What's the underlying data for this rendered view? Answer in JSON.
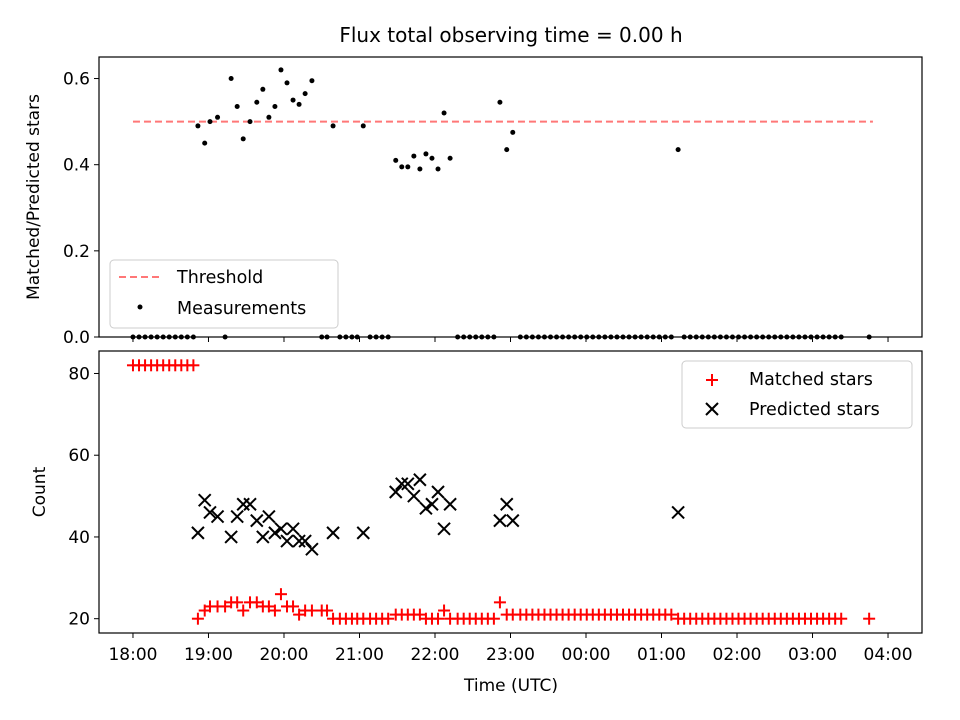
{
  "chart_data": [
    {
      "type": "scatter",
      "title": "Flux total observing time = 0.00 h",
      "xlabel": "",
      "ylabel": "Matched/Predicted stars",
      "x_unit": "hours since 18:00 UTC",
      "xlim": [
        -0.45,
        10.45
      ],
      "ylim": [
        0.0,
        0.65
      ],
      "yticks": [
        0.0,
        0.2,
        0.4,
        0.6
      ],
      "ytick_labels": [
        "0.0",
        "0.2",
        "0.4",
        "0.6"
      ],
      "legend_position": "lower-left",
      "threshold": {
        "name": "Threshold",
        "value": 0.5,
        "x_range": [
          0.0,
          9.8
        ],
        "color": "#ff7777",
        "style": "dashed"
      },
      "series": [
        {
          "name": "Measurements",
          "marker": "dot",
          "color": "#000000",
          "points": [
            [
              0.0,
              0.0
            ],
            [
              0.08,
              0.0
            ],
            [
              0.16,
              0.0
            ],
            [
              0.24,
              0.0
            ],
            [
              0.32,
              0.0
            ],
            [
              0.4,
              0.0
            ],
            [
              0.48,
              0.0
            ],
            [
              0.56,
              0.0
            ],
            [
              0.64,
              0.0
            ],
            [
              0.72,
              0.0
            ],
            [
              0.8,
              0.0
            ],
            [
              0.86,
              0.49
            ],
            [
              0.95,
              0.45
            ],
            [
              1.02,
              0.5
            ],
            [
              1.12,
              0.51
            ],
            [
              1.22,
              0.0
            ],
            [
              1.3,
              0.6
            ],
            [
              1.38,
              0.535
            ],
            [
              1.46,
              0.46
            ],
            [
              1.55,
              0.5
            ],
            [
              1.64,
              0.545
            ],
            [
              1.72,
              0.575
            ],
            [
              1.8,
              0.51
            ],
            [
              1.88,
              0.535
            ],
            [
              1.96,
              0.62
            ],
            [
              2.04,
              0.59
            ],
            [
              2.12,
              0.55
            ],
            [
              2.2,
              0.54
            ],
            [
              2.28,
              0.565
            ],
            [
              2.37,
              0.595
            ],
            [
              2.5,
              0.0
            ],
            [
              2.57,
              0.0
            ],
            [
              2.65,
              0.49
            ],
            [
              2.74,
              0.0
            ],
            [
              2.82,
              0.0
            ],
            [
              2.9,
              0.0
            ],
            [
              2.97,
              0.0
            ],
            [
              3.05,
              0.49
            ],
            [
              3.14,
              0.0
            ],
            [
              3.22,
              0.0
            ],
            [
              3.3,
              0.0
            ],
            [
              3.38,
              0.0
            ],
            [
              3.48,
              0.41
            ],
            [
              3.56,
              0.395
            ],
            [
              3.64,
              0.395
            ],
            [
              3.72,
              0.42
            ],
            [
              3.8,
              0.39
            ],
            [
              3.88,
              0.425
            ],
            [
              3.96,
              0.415
            ],
            [
              4.04,
              0.39
            ],
            [
              4.12,
              0.52
            ],
            [
              4.2,
              0.415
            ],
            [
              4.3,
              0.0
            ],
            [
              4.38,
              0.0
            ],
            [
              4.46,
              0.0
            ],
            [
              4.54,
              0.0
            ],
            [
              4.62,
              0.0
            ],
            [
              4.7,
              0.0
            ],
            [
              4.78,
              0.0
            ],
            [
              4.86,
              0.545
            ],
            [
              4.95,
              0.435
            ],
            [
              5.03,
              0.475
            ],
            [
              5.13,
              0.0
            ],
            [
              5.21,
              0.0
            ],
            [
              5.29,
              0.0
            ],
            [
              5.37,
              0.0
            ],
            [
              5.45,
              0.0
            ],
            [
              5.53,
              0.0
            ],
            [
              5.61,
              0.0
            ],
            [
              5.69,
              0.0
            ],
            [
              5.77,
              0.0
            ],
            [
              5.85,
              0.0
            ],
            [
              5.93,
              0.0
            ],
            [
              6.01,
              0.0
            ],
            [
              6.09,
              0.0
            ],
            [
              6.17,
              0.0
            ],
            [
              6.25,
              0.0
            ],
            [
              6.33,
              0.0
            ],
            [
              6.41,
              0.0
            ],
            [
              6.49,
              0.0
            ],
            [
              6.57,
              0.0
            ],
            [
              6.65,
              0.0
            ],
            [
              6.73,
              0.0
            ],
            [
              6.81,
              0.0
            ],
            [
              6.89,
              0.0
            ],
            [
              6.97,
              0.0
            ],
            [
              7.05,
              0.0
            ],
            [
              7.13,
              0.0
            ],
            [
              7.22,
              0.435
            ],
            [
              7.3,
              0.0
            ],
            [
              7.38,
              0.0
            ],
            [
              7.46,
              0.0
            ],
            [
              7.54,
              0.0
            ],
            [
              7.62,
              0.0
            ],
            [
              7.7,
              0.0
            ],
            [
              7.78,
              0.0
            ],
            [
              7.86,
              0.0
            ],
            [
              7.94,
              0.0
            ],
            [
              8.02,
              0.0
            ],
            [
              8.1,
              0.0
            ],
            [
              8.18,
              0.0
            ],
            [
              8.26,
              0.0
            ],
            [
              8.34,
              0.0
            ],
            [
              8.42,
              0.0
            ],
            [
              8.5,
              0.0
            ],
            [
              8.58,
              0.0
            ],
            [
              8.66,
              0.0
            ],
            [
              8.74,
              0.0
            ],
            [
              8.82,
              0.0
            ],
            [
              8.9,
              0.0
            ],
            [
              8.98,
              0.0
            ],
            [
              9.06,
              0.0
            ],
            [
              9.14,
              0.0
            ],
            [
              9.22,
              0.0
            ],
            [
              9.3,
              0.0
            ],
            [
              9.38,
              0.0
            ],
            [
              9.75,
              0.0
            ]
          ]
        }
      ]
    },
    {
      "type": "scatter",
      "title": "",
      "xlabel": "Time (UTC)",
      "ylabel": "Count",
      "x_unit": "hours since 18:00 UTC",
      "xlim": [
        -0.45,
        10.45
      ],
      "ylim": [
        16.5,
        85.5
      ],
      "yticks": [
        20,
        40,
        60,
        80
      ],
      "ytick_labels": [
        "20",
        "40",
        "60",
        "80"
      ],
      "xticks": [
        0,
        1,
        2,
        3,
        4,
        5,
        6,
        7,
        8,
        9,
        10
      ],
      "xtick_labels": [
        "18:00",
        "19:00",
        "20:00",
        "21:00",
        "22:00",
        "23:00",
        "00:00",
        "01:00",
        "02:00",
        "03:00",
        "04:00"
      ],
      "legend_position": "upper-right",
      "series": [
        {
          "name": "Matched stars",
          "marker": "plus",
          "color": "#ff0000",
          "points": [
            [
              0.0,
              82
            ],
            [
              0.08,
              82
            ],
            [
              0.16,
              82
            ],
            [
              0.24,
              82
            ],
            [
              0.32,
              82
            ],
            [
              0.4,
              82
            ],
            [
              0.48,
              82
            ],
            [
              0.56,
              82
            ],
            [
              0.64,
              82
            ],
            [
              0.72,
              82
            ],
            [
              0.8,
              82
            ],
            [
              0.86,
              20
            ],
            [
              0.95,
              22
            ],
            [
              1.02,
              23
            ],
            [
              1.12,
              23
            ],
            [
              1.22,
              23
            ],
            [
              1.3,
              24
            ],
            [
              1.38,
              24
            ],
            [
              1.46,
              22
            ],
            [
              1.55,
              24
            ],
            [
              1.64,
              24
            ],
            [
              1.72,
              23
            ],
            [
              1.8,
              23
            ],
            [
              1.88,
              22
            ],
            [
              1.96,
              26
            ],
            [
              2.04,
              23
            ],
            [
              2.12,
              23
            ],
            [
              2.2,
              21
            ],
            [
              2.28,
              22
            ],
            [
              2.37,
              22
            ],
            [
              2.5,
              22
            ],
            [
              2.57,
              22
            ],
            [
              2.65,
              20
            ],
            [
              2.74,
              20
            ],
            [
              2.82,
              20
            ],
            [
              2.9,
              20
            ],
            [
              2.97,
              20
            ],
            [
              3.05,
              20
            ],
            [
              3.14,
              20
            ],
            [
              3.22,
              20
            ],
            [
              3.3,
              20
            ],
            [
              3.38,
              20
            ],
            [
              3.48,
              21
            ],
            [
              3.56,
              21
            ],
            [
              3.64,
              21
            ],
            [
              3.72,
              21
            ],
            [
              3.8,
              21
            ],
            [
              3.88,
              20
            ],
            [
              3.96,
              20
            ],
            [
              4.04,
              20
            ],
            [
              4.12,
              22
            ],
            [
              4.2,
              20
            ],
            [
              4.3,
              20
            ],
            [
              4.38,
              20
            ],
            [
              4.46,
              20
            ],
            [
              4.54,
              20
            ],
            [
              4.62,
              20
            ],
            [
              4.7,
              20
            ],
            [
              4.78,
              20
            ],
            [
              4.86,
              24
            ],
            [
              4.95,
              21
            ],
            [
              5.03,
              21
            ],
            [
              5.13,
              21
            ],
            [
              5.21,
              21
            ],
            [
              5.29,
              21
            ],
            [
              5.37,
              21
            ],
            [
              5.45,
              21
            ],
            [
              5.53,
              21
            ],
            [
              5.61,
              21
            ],
            [
              5.69,
              21
            ],
            [
              5.77,
              21
            ],
            [
              5.85,
              21
            ],
            [
              5.93,
              21
            ],
            [
              6.01,
              21
            ],
            [
              6.09,
              21
            ],
            [
              6.17,
              21
            ],
            [
              6.25,
              21
            ],
            [
              6.33,
              21
            ],
            [
              6.41,
              21
            ],
            [
              6.49,
              21
            ],
            [
              6.57,
              21
            ],
            [
              6.65,
              21
            ],
            [
              6.73,
              21
            ],
            [
              6.81,
              21
            ],
            [
              6.89,
              21
            ],
            [
              6.97,
              21
            ],
            [
              7.05,
              21
            ],
            [
              7.13,
              21
            ],
            [
              7.22,
              20
            ],
            [
              7.3,
              20
            ],
            [
              7.38,
              20
            ],
            [
              7.46,
              20
            ],
            [
              7.54,
              20
            ],
            [
              7.62,
              20
            ],
            [
              7.7,
              20
            ],
            [
              7.78,
              20
            ],
            [
              7.86,
              20
            ],
            [
              7.94,
              20
            ],
            [
              8.02,
              20
            ],
            [
              8.1,
              20
            ],
            [
              8.18,
              20
            ],
            [
              8.26,
              20
            ],
            [
              8.34,
              20
            ],
            [
              8.42,
              20
            ],
            [
              8.5,
              20
            ],
            [
              8.58,
              20
            ],
            [
              8.66,
              20
            ],
            [
              8.74,
              20
            ],
            [
              8.82,
              20
            ],
            [
              8.9,
              20
            ],
            [
              8.98,
              20
            ],
            [
              9.06,
              20
            ],
            [
              9.14,
              20
            ],
            [
              9.22,
              20
            ],
            [
              9.3,
              20
            ],
            [
              9.38,
              20
            ],
            [
              9.75,
              20
            ]
          ]
        },
        {
          "name": "Predicted stars",
          "marker": "x",
          "color": "#000000",
          "points": [
            [
              0.86,
              41
            ],
            [
              0.95,
              49
            ],
            [
              1.02,
              46
            ],
            [
              1.12,
              45
            ],
            [
              1.3,
              40
            ],
            [
              1.38,
              45
            ],
            [
              1.46,
              48
            ],
            [
              1.55,
              48
            ],
            [
              1.64,
              44
            ],
            [
              1.72,
              40
            ],
            [
              1.8,
              45
            ],
            [
              1.88,
              41
            ],
            [
              1.96,
              42
            ],
            [
              2.04,
              39
            ],
            [
              2.12,
              42
            ],
            [
              2.2,
              39
            ],
            [
              2.28,
              39
            ],
            [
              2.37,
              37
            ],
            [
              2.65,
              41
            ],
            [
              3.05,
              41
            ],
            [
              3.48,
              51
            ],
            [
              3.56,
              53
            ],
            [
              3.64,
              53
            ],
            [
              3.72,
              50
            ],
            [
              3.8,
              54
            ],
            [
              3.88,
              47
            ],
            [
              3.96,
              48
            ],
            [
              4.04,
              51
            ],
            [
              4.12,
              42
            ],
            [
              4.2,
              48
            ],
            [
              4.86,
              44
            ],
            [
              4.95,
              48
            ],
            [
              5.03,
              44
            ],
            [
              7.22,
              46
            ]
          ]
        }
      ]
    }
  ]
}
